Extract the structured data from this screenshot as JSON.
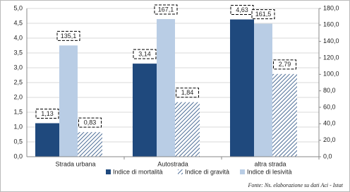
{
  "chart_data": {
    "type": "bar",
    "categories": [
      "Strada urbana",
      "Autostrada",
      "altra strada"
    ],
    "series": [
      {
        "name": "Indice di mortalità",
        "color": "#1f497d",
        "values": [
          1.13,
          3.14,
          4.63
        ],
        "value_labels": [
          "1,13",
          "3,14",
          "4,63"
        ]
      },
      {
        "name": "Indice di gravità",
        "color": "#1f497d",
        "pattern": "hatch",
        "values": [
          0.83,
          1.84,
          2.79
        ],
        "value_labels": [
          "0,83",
          "1,84",
          "2,79"
        ]
      },
      {
        "name": "Indice di lesività",
        "color": "#b9cde5",
        "axis": "y2",
        "values": [
          135.1,
          167.1,
          161.5
        ],
        "value_labels": [
          "135,1",
          "167,1",
          "161,5"
        ]
      }
    ],
    "ylim": [
      0,
      5
    ],
    "yticks": [
      {
        "value": 0,
        "label": "0,0"
      },
      {
        "value": 0.5,
        "label": "0,5"
      },
      {
        "value": 1,
        "label": "1,0"
      },
      {
        "value": 1.5,
        "label": "1,5"
      },
      {
        "value": 2,
        "label": "2,0"
      },
      {
        "value": 2.5,
        "label": "2,5"
      },
      {
        "value": 3,
        "label": "3,0"
      },
      {
        "value": 3.5,
        "label": "3,5"
      },
      {
        "value": 4,
        "label": "4,0"
      },
      {
        "value": 4.5,
        "label": "4,5"
      },
      {
        "value": 5,
        "label": "5,0"
      }
    ],
    "y2lim": [
      0,
      180
    ],
    "y2ticks": [
      {
        "value": 0,
        "label": "0,0"
      },
      {
        "value": 20,
        "label": "20,0"
      },
      {
        "value": 40,
        "label": "40,0"
      },
      {
        "value": 60,
        "label": "60,0"
      },
      {
        "value": 80,
        "label": "80,0"
      },
      {
        "value": 100,
        "label": "100,0"
      },
      {
        "value": 120,
        "label": "120,0"
      },
      {
        "value": 140,
        "label": "140,0"
      },
      {
        "value": 160,
        "label": "160,0"
      },
      {
        "value": 180,
        "label": "180,0"
      }
    ],
    "grid": true,
    "legend": "bottom",
    "source": "Fonte: Ns. elaborazione su dati Aci - Istat"
  }
}
